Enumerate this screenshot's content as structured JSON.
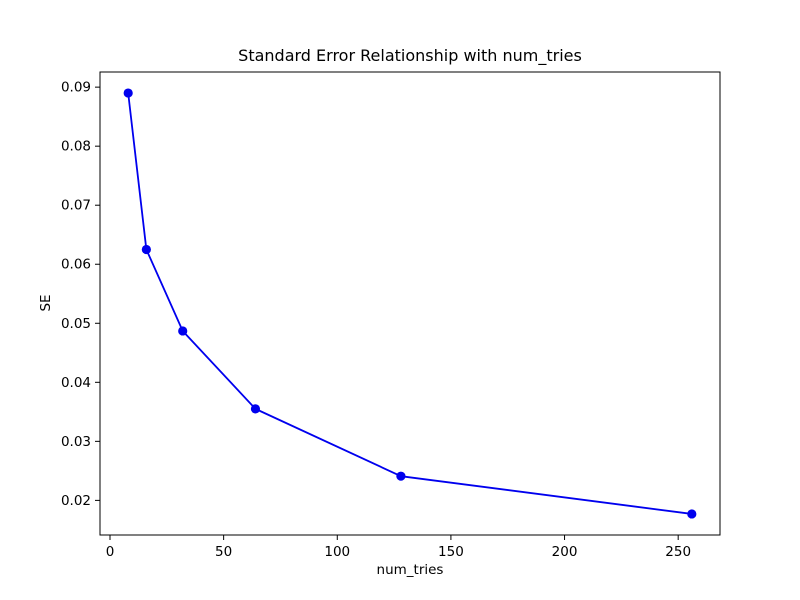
{
  "chart_data": {
    "type": "line",
    "title": "Standard Error Relationship with num_tries",
    "xlabel": "num_tries",
    "ylabel": "SE",
    "x": [
      8,
      16,
      32,
      64,
      128,
      256
    ],
    "y": [
      0.089,
      0.0625,
      0.0487,
      0.0355,
      0.0241,
      0.0177
    ],
    "series": [
      {
        "name": "SE",
        "x": [
          8,
          16,
          32,
          64,
          128,
          256
        ],
        "values": [
          0.089,
          0.0625,
          0.0487,
          0.0355,
          0.0241,
          0.0177
        ]
      }
    ],
    "x_ticks": [
      0,
      50,
      100,
      150,
      200,
      250
    ],
    "y_ticks": [
      0.02,
      0.03,
      0.04,
      0.05,
      0.06,
      0.07,
      0.08,
      0.09
    ],
    "xlim": [
      -4.4,
      268.4
    ],
    "ylim": [
      0.014135,
      0.092565
    ],
    "grid": false,
    "legend": null,
    "line_color": "#0000ee",
    "marker": "circle",
    "background_color": "#ffffff"
  }
}
